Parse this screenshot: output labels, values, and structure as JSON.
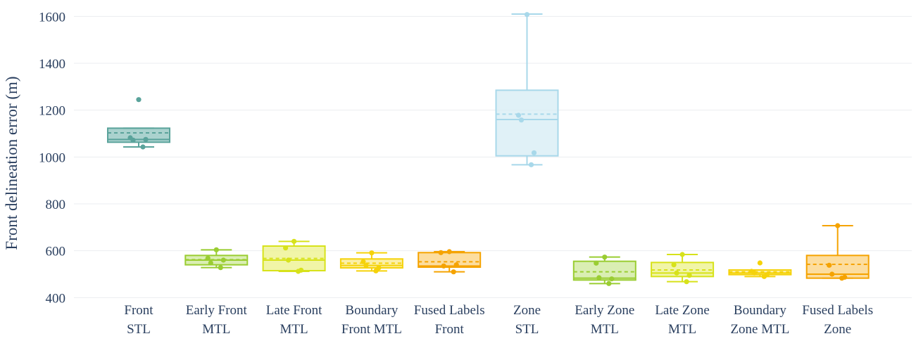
{
  "chart_data": {
    "type": "box",
    "title": "",
    "xlabel": "",
    "ylabel": "Front delineation error (m)",
    "ylim": [
      380,
      1640
    ],
    "yticks": [
      400,
      600,
      800,
      1000,
      1200,
      1400,
      1600
    ],
    "ytick_labels": [
      "400",
      "600",
      "800",
      "1000",
      "1200",
      "1400",
      "1600"
    ],
    "grid": true,
    "categories": [
      {
        "label_lines": [
          "Front",
          "STL"
        ],
        "color": "#5aa39b",
        "fill": "#8ec3bd",
        "q1": 1063,
        "median": 1075,
        "q3": 1123,
        "mean": 1103,
        "whisker_low": 1043,
        "whisker_high": 1123,
        "points": [
          1245,
          1082,
          1072,
          1075,
          1043
        ]
      },
      {
        "label_lines": [
          "Early Front",
          "MTL"
        ],
        "color": "#9acd32",
        "fill": "#cde899",
        "q1": 540,
        "median": 560,
        "q3": 580,
        "mean": 562,
        "whisker_low": 528,
        "whisker_high": 604,
        "points": [
          604,
          568,
          548,
          560,
          528
        ]
      },
      {
        "label_lines": [
          "Late Front",
          "MTL"
        ],
        "color": "#d7e21a",
        "fill": "#ecf18a",
        "q1": 515,
        "median": 560,
        "q3": 620,
        "mean": 567,
        "whisker_low": 512,
        "whisker_high": 640,
        "points": [
          640,
          612,
          560,
          517,
          512
        ]
      },
      {
        "label_lines": [
          "Boundary",
          "Front MTL"
        ],
        "color": "#f5d20a",
        "fill": "#fae98a",
        "q1": 527,
        "median": 537,
        "q3": 565,
        "mean": 547,
        "whisker_low": 514,
        "whisker_high": 591,
        "points": [
          591,
          553,
          537,
          527,
          514
        ]
      },
      {
        "label_lines": [
          "Fused Labels",
          "Front"
        ],
        "color": "#f5a300",
        "fill": "#fbd27f",
        "q1": 530,
        "median": 535,
        "q3": 592,
        "mean": 553,
        "whisker_low": 510,
        "whisker_high": 596,
        "points": [
          596,
          592,
          535,
          540,
          510
        ]
      },
      {
        "label_lines": [
          "Zone",
          "STL"
        ],
        "color": "#a8d8ea",
        "fill": "#d6ecf4",
        "q1": 1005,
        "median": 1160,
        "q3": 1285,
        "mean": 1183,
        "whisker_low": 967,
        "whisker_high": 1610,
        "points": [
          1608,
          1178,
          1158,
          1018,
          967
        ]
      },
      {
        "label_lines": [
          "Early Zone",
          "MTL"
        ],
        "color": "#9acd32",
        "fill": "#cde899",
        "q1": 475,
        "median": 483,
        "q3": 555,
        "mean": 510,
        "whisker_low": 460,
        "whisker_high": 573,
        "points": [
          573,
          547,
          485,
          480,
          460
        ]
      },
      {
        "label_lines": [
          "Late Zone",
          "MTL"
        ],
        "color": "#d7e21a",
        "fill": "#ecf18a",
        "q1": 490,
        "median": 505,
        "q3": 550,
        "mean": 518,
        "whisker_low": 468,
        "whisker_high": 584,
        "points": [
          584,
          540,
          505,
          495,
          468
        ]
      },
      {
        "label_lines": [
          "Boundary",
          "Zone MTL"
        ],
        "color": "#f5d20a",
        "fill": "#fae98a",
        "q1": 498,
        "median": 505,
        "q3": 518,
        "mean": 510,
        "whisker_low": 490,
        "whisker_high": 518,
        "points": [
          548,
          512,
          505,
          498,
          490
        ]
      },
      {
        "label_lines": [
          "Fused Labels",
          "Zone"
        ],
        "color": "#f5a300",
        "fill": "#fbd27f",
        "q1": 483,
        "median": 500,
        "q3": 580,
        "mean": 542,
        "whisker_low": 483,
        "whisker_high": 707,
        "points": [
          707,
          538,
          500,
          487,
          483
        ]
      }
    ]
  }
}
